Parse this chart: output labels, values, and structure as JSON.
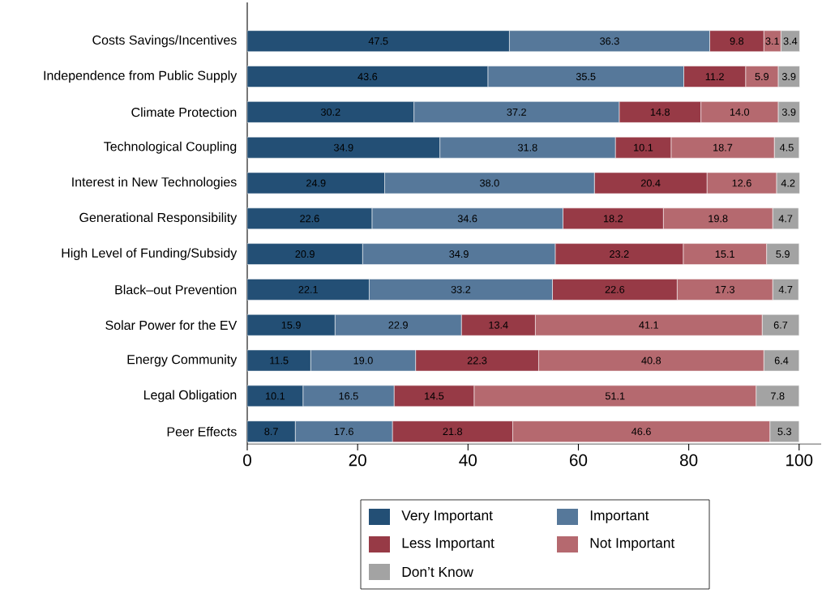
{
  "chart_data": {
    "type": "bar",
    "orientation": "horizontal",
    "stacked": true,
    "legend": "bottom",
    "categories": [
      "Costs Savings/Incentives",
      "Independence from Public Supply",
      "Climate Protection",
      "Technological Coupling",
      "Interest in New Technologies",
      "Generational Responsibility",
      "High Level of Funding/Subsidy",
      "Black–out Prevention",
      "Solar Power for the EV",
      "Energy Community",
      "Legal Obligation",
      "Peer Effects"
    ],
    "xlim": [
      0,
      104
    ],
    "xticks": [
      0,
      20,
      40,
      60,
      80,
      100
    ],
    "series": [
      {
        "name": "Very Important",
        "color": "#234f75",
        "values": [
          47.5,
          43.6,
          30.2,
          34.9,
          24.9,
          22.6,
          20.9,
          22.1,
          15.9,
          11.5,
          10.1,
          8.7
        ],
        "value_labels": [
          "47.5",
          "43.6",
          "30.2",
          "34.9",
          "24.9",
          "22.6",
          "20.9",
          "22.1",
          "15.9",
          "11.5",
          "10.1",
          "8.7"
        ]
      },
      {
        "name": "Important",
        "color": "#56789a",
        "values": [
          36.3,
          35.5,
          37.2,
          31.8,
          38.0,
          34.6,
          34.9,
          33.2,
          22.9,
          19.0,
          16.5,
          17.6
        ],
        "value_labels": [
          "36.3",
          "35.5",
          "37.2",
          "31.8",
          "38.0",
          "34.6",
          "34.9",
          "33.2",
          "22.9",
          "19.0",
          "16.5",
          "17.6"
        ]
      },
      {
        "name": "Less Important",
        "color": "#973a46",
        "values": [
          9.8,
          11.2,
          14.8,
          10.1,
          20.4,
          18.2,
          23.2,
          22.6,
          13.4,
          22.3,
          14.5,
          21.8
        ],
        "value_labels": [
          "9.8",
          "11.2",
          "14.8",
          "10.1",
          "20.4",
          "18.2",
          "23.2",
          "22.6",
          "13.4",
          "22.3",
          "14.5",
          "21.8"
        ]
      },
      {
        "name": "Not Important",
        "color": "#b5696f",
        "values": [
          3.1,
          5.9,
          14.0,
          18.7,
          12.6,
          19.8,
          15.1,
          17.3,
          41.1,
          40.8,
          51.1,
          46.6
        ],
        "value_labels": [
          "3.1",
          "5.9",
          "14.0",
          "18.7",
          "12.6",
          "19.8",
          "15.1",
          "17.3",
          "41.1",
          "40.8",
          "51.1",
          "46.6"
        ]
      },
      {
        "name": "Don’t Know",
        "color": "#a3a3a3",
        "values": [
          3.4,
          3.9,
          3.9,
          4.5,
          4.2,
          4.7,
          5.9,
          4.7,
          6.7,
          6.4,
          7.8,
          5.3
        ],
        "value_labels": [
          "3.4",
          "3.9",
          "3.9",
          "4.5",
          "4.2",
          "4.7",
          "5.9",
          "4.7",
          "6.7",
          "6.4",
          "7.8",
          "5.3"
        ]
      }
    ]
  }
}
